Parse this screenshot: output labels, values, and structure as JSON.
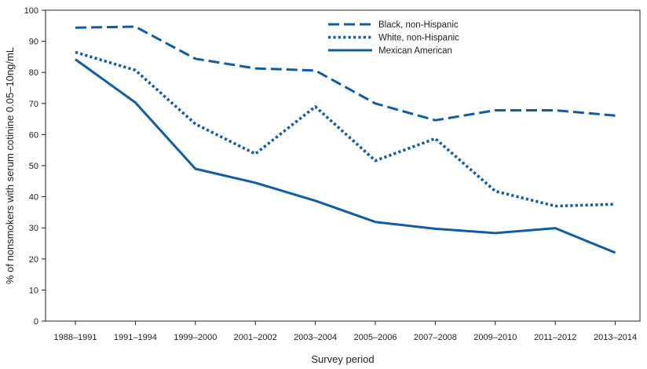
{
  "chart_data": {
    "type": "line",
    "title": "",
    "xlabel": "Survey period",
    "ylabel": "% of nonsmokers with serum cotinine 0.05–10ng/mL",
    "ylim": [
      0,
      100
    ],
    "yticks": [
      0,
      10,
      20,
      30,
      40,
      50,
      60,
      70,
      80,
      90,
      100
    ],
    "categories": [
      "1988–1991",
      "1991–1994",
      "1999–2000",
      "2001–2002",
      "2003–2004",
      "2005–2006",
      "2007–2008",
      "2009–2010",
      "2011–2012",
      "2013–2014"
    ],
    "legend_position": "top-right",
    "series": [
      {
        "name": "Black, non-Hispanic",
        "style": "dashed",
        "color": "#0f5da6",
        "values": [
          94.4,
          94.7,
          84.4,
          81.3,
          80.6,
          70.0,
          64.6,
          67.8,
          67.8,
          66.1
        ]
      },
      {
        "name": "White, non-Hispanic",
        "style": "dotted",
        "color": "#0f5da6",
        "values": [
          86.5,
          80.7,
          63.4,
          53.8,
          69.0,
          51.6,
          58.7,
          41.8,
          37.0,
          37.6
        ]
      },
      {
        "name": "Mexican American",
        "style": "solid",
        "color": "#0f5da6",
        "values": [
          84.2,
          70.3,
          49.0,
          44.5,
          38.7,
          31.9,
          29.7,
          28.3,
          29.9,
          22.0
        ]
      }
    ]
  }
}
